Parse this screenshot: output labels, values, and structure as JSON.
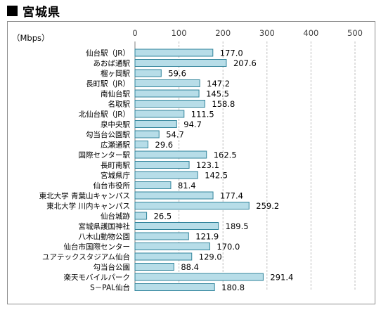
{
  "heading": {
    "title": "宮城県"
  },
  "chart_data": {
    "type": "bar",
    "orientation": "horizontal",
    "unit_label": "（Mbps）",
    "xlim": [
      0,
      500
    ],
    "xticks": [
      0,
      100,
      200,
      300,
      400,
      500
    ],
    "grid": true,
    "bar_color": "#b7dde8",
    "bar_border": "#31849b",
    "categories": [
      "仙台駅（JR）",
      "あおば通駅",
      "榴ヶ岡駅",
      "長町駅（JR）",
      "南仙台駅",
      "名取駅",
      "北仙台駅（JR）",
      "泉中央駅",
      "勾当台公園駅",
      "広瀬通駅",
      "国際センター駅",
      "長町南駅",
      "宮城県庁",
      "仙台市役所",
      "東北大学 青葉山キャンパス",
      "東北大学 川内キャンパス",
      "仙台城跡",
      "宮城県護国神社",
      "八木山動物公園",
      "仙台市国際センター",
      "ユアテックスタジアム仙台",
      "勾当台公園",
      "楽天モバイルパーク",
      "S－PAL仙台"
    ],
    "values": [
      177.0,
      207.6,
      59.6,
      147.2,
      145.5,
      158.8,
      111.5,
      94.7,
      54.7,
      29.6,
      162.5,
      123.1,
      142.5,
      81.4,
      177.4,
      259.2,
      26.5,
      189.5,
      121.9,
      170.0,
      129.0,
      88.4,
      291.4,
      180.8
    ],
    "value_labels": [
      "177.0",
      "207.6",
      "59.6",
      "147.2",
      "145.5",
      "158.8",
      "111.5",
      "94.7",
      "54.7",
      "29.6",
      "162.5",
      "123.1",
      "142.5",
      "81.4",
      "177.4",
      "259.2",
      "26.5",
      "189.5",
      "121.9",
      "170.0",
      "129.0",
      "88.4",
      "291.4",
      "180.8"
    ]
  }
}
